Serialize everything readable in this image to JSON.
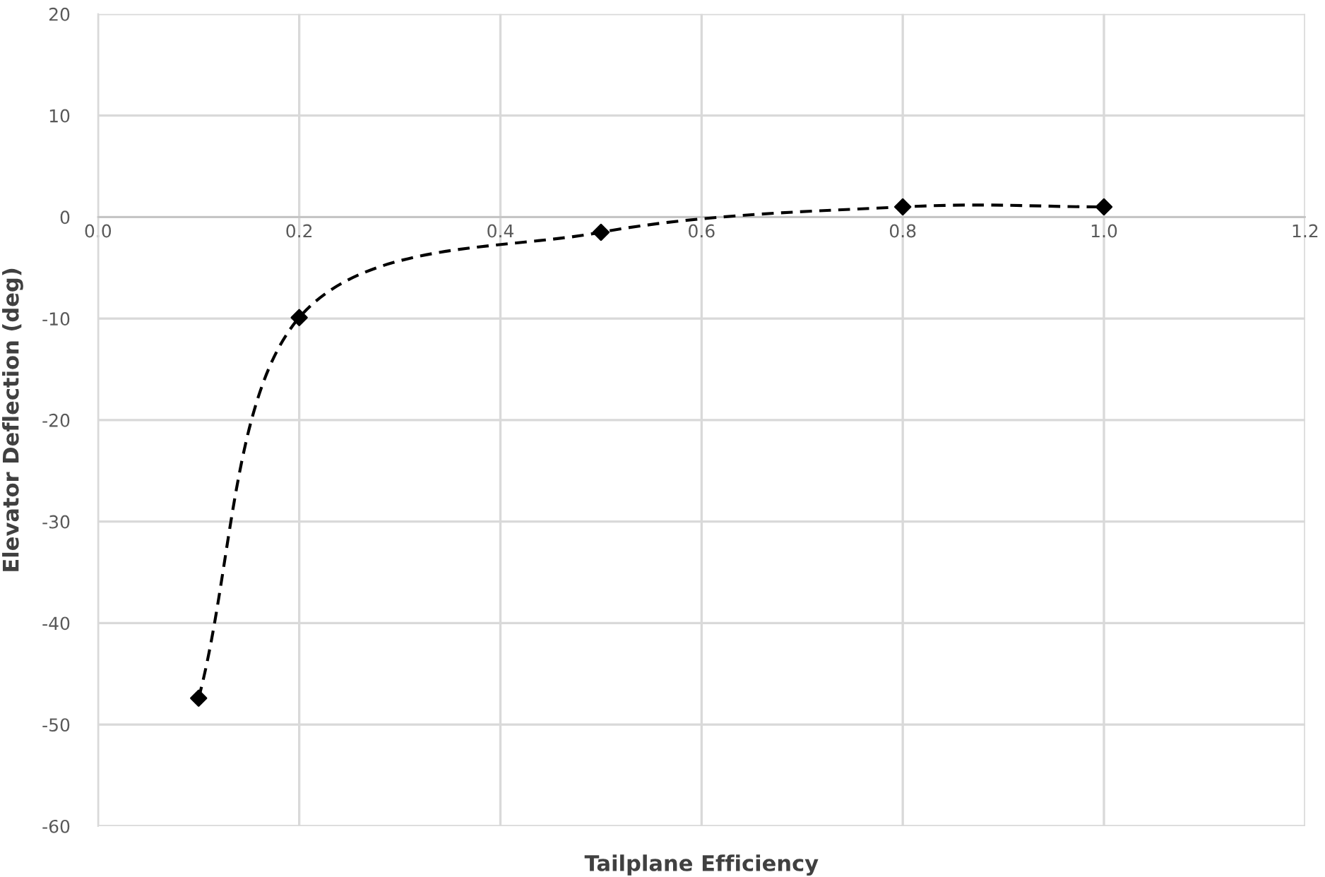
{
  "chart_data": {
    "type": "line",
    "xlabel": "Tailplane Efficiency",
    "ylabel": "Elevator Deflection (deg)",
    "series": [
      {
        "color": "#000000",
        "x": [
          0.1,
          0.2,
          0.5,
          0.8,
          1.0
        ],
        "values": [
          -47.4,
          -9.9,
          -1.5,
          1.0,
          1.0
        ]
      }
    ],
    "xlim": [
      0.0,
      1.2
    ],
    "xticks": [
      {
        "value": 0,
        "label": "0.0"
      },
      0.2,
      0.4,
      0.6,
      0.8,
      {
        "value": 1,
        "label": "1.0"
      },
      1.2
    ],
    "ylim": [
      -60,
      20
    ],
    "yticks": [
      -60,
      -50,
      -40,
      -30,
      -20,
      -10,
      0,
      10,
      20
    ],
    "grid": true,
    "marker": "diamond",
    "line_style": "dashed"
  }
}
